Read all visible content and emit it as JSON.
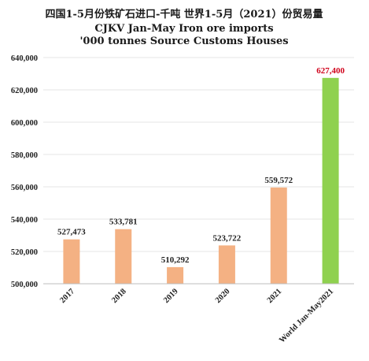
{
  "chart_data": {
    "type": "bar",
    "title_lines": [
      "四国1-5月份铁矿石进口-千吨 世界1-5月（2021）份贸易量",
      "CJKV Jan-May Iron ore imports",
      "'000 tonnes Source Customs Houses"
    ],
    "categories": [
      "2017",
      "2018",
      "2019",
      "2020",
      "2021",
      "World Jan-May2021"
    ],
    "values": [
      527473,
      533781,
      510292,
      523722,
      559572,
      627400
    ],
    "value_labels": [
      "527,473",
      "533,781",
      "510,292",
      "523,722",
      "559,572",
      "627,400"
    ],
    "ylim": [
      500000,
      640000
    ],
    "yticks": [
      500000,
      520000,
      540000,
      560000,
      580000,
      600000,
      620000,
      640000
    ],
    "ytick_labels": [
      "500,000",
      "520,000",
      "540,000",
      "560,000",
      "580,000",
      "600,000",
      "620,000",
      "640,000"
    ],
    "grid": true,
    "colors": {
      "bar": "#f4b183",
      "highlight_bar": "#8fd14f",
      "highlight_label": "#d0021b"
    },
    "highlight_index": 5
  }
}
